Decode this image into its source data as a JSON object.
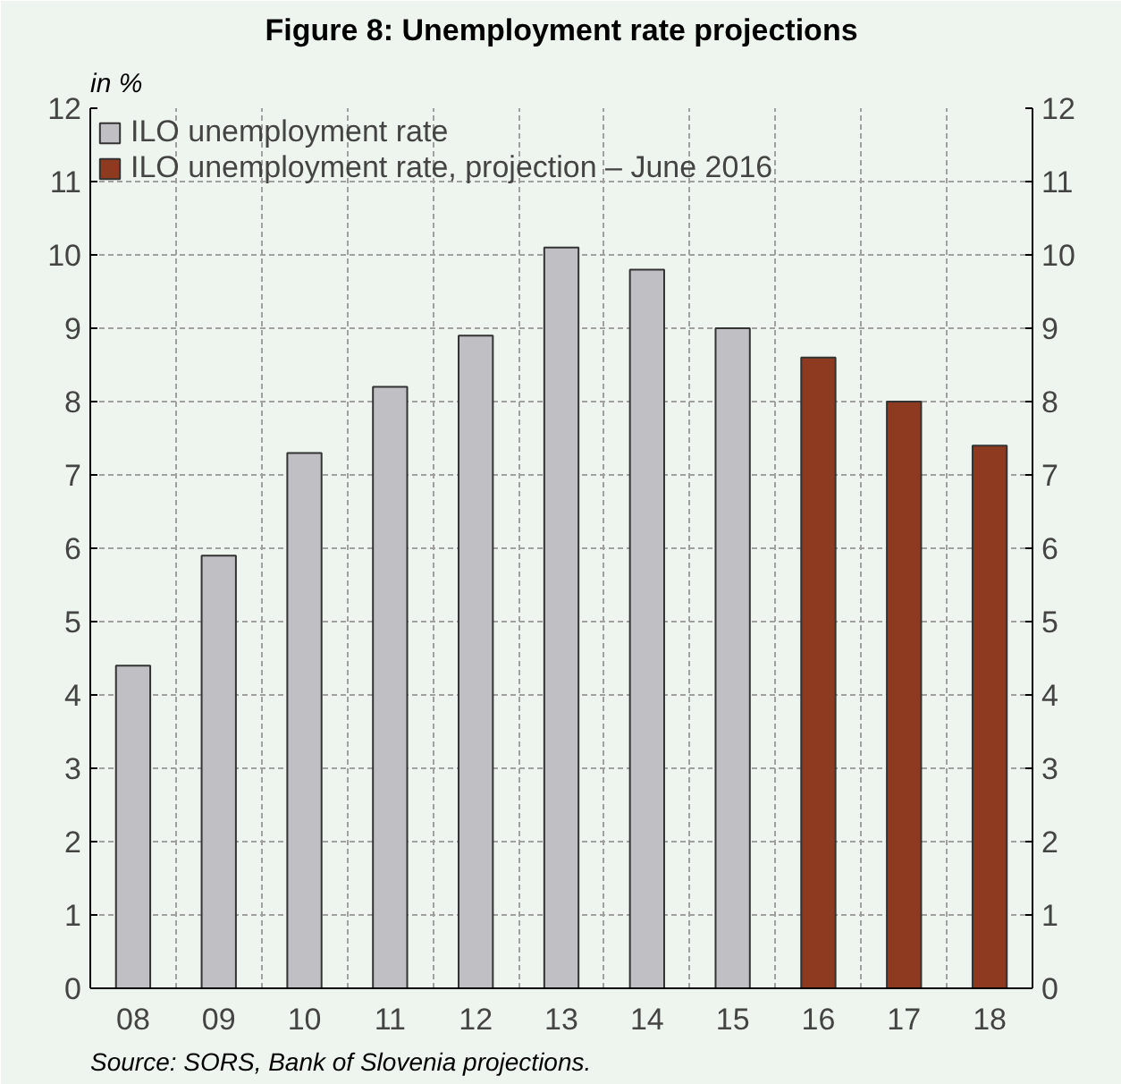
{
  "chart_data": {
    "type": "bar",
    "title": "Figure 8: Unemployment rate projections",
    "ylabel": "in %",
    "categories": [
      "08",
      "09",
      "10",
      "11",
      "12",
      "13",
      "14",
      "15",
      "16",
      "17",
      "18"
    ],
    "series": [
      {
        "name": "ILO unemployment rate",
        "color": "#c0c0c4",
        "values": [
          4.4,
          5.9,
          7.3,
          8.2,
          8.9,
          10.1,
          9.8,
          9.0,
          null,
          null,
          null
        ]
      },
      {
        "name": "ILO unemployment rate, projection – June 2016",
        "color": "#8e3a20",
        "values": [
          null,
          null,
          null,
          null,
          null,
          null,
          null,
          null,
          8.6,
          8.0,
          7.4
        ]
      }
    ],
    "ylim": [
      0,
      12
    ],
    "yticks": [
      0,
      1,
      2,
      3,
      4,
      5,
      6,
      7,
      8,
      9,
      10,
      11,
      12
    ],
    "y2lim": [
      0,
      12
    ],
    "y2ticks": [
      0,
      1,
      2,
      3,
      4,
      5,
      6,
      7,
      8,
      9,
      10,
      11,
      12
    ],
    "grid": true,
    "legend": "top left",
    "annotations": [
      "Source: SORS, Bank of Slovenia projections."
    ]
  }
}
